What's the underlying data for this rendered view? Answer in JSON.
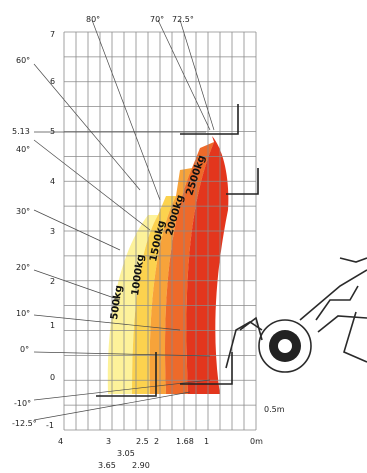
{
  "chart_data": {
    "type": "load-chart",
    "y_ticks": [
      "7",
      "6",
      "5",
      "4",
      "3",
      "2",
      "1",
      "0",
      "-1"
    ],
    "x_ticks_main": [
      "4",
      "3",
      "2",
      "1",
      "0m"
    ],
    "x_ticks_sub": [
      "3.05",
      "2.5",
      "1.68"
    ],
    "x_ticks_sub2": [
      "3.65",
      "2.90"
    ],
    "boom_angles_left": [
      "60°",
      "40°",
      "30°",
      "20°",
      "10°",
      "0°",
      "-10°",
      "-12.5°"
    ],
    "boom_angles_top": [
      "80°",
      "70°",
      "72.5°"
    ],
    "height_label": "5.13",
    "dimension_label": "0.5m",
    "zones": [
      {
        "label": "500kg",
        "color": "#fdf29a"
      },
      {
        "label": "1000kg",
        "color": "#fcd24e"
      },
      {
        "label": "1500kg",
        "color": "#f7a33a"
      },
      {
        "label": "2000kg",
        "color": "#ee6a2a"
      },
      {
        "label": "2500kg",
        "color": "#e3361d"
      }
    ]
  }
}
